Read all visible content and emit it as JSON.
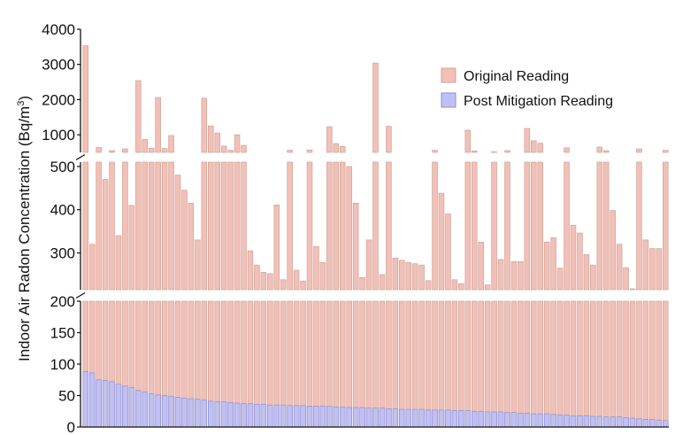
{
  "chart_data": {
    "type": "bar",
    "subtype": "overlapping bars with broken y-axis",
    "ylabel": "Indoor Air Radon Concentration (Bq/m³)",
    "ylabel_parts": {
      "main": "Indoor Air Radon Concentration (Bq/m",
      "sup": "3",
      "end": ")"
    },
    "legend_position": "top-right",
    "grid": false,
    "y_segments": [
      {
        "range": [
          0,
          200
        ],
        "ticks": [
          0,
          50,
          100,
          150,
          200
        ]
      },
      {
        "range": [
          215,
          510
        ],
        "ticks": [
          300,
          400,
          500
        ]
      },
      {
        "range": [
          500,
          4000
        ],
        "ticks": [
          1000,
          2000,
          3000,
          4000
        ]
      }
    ],
    "series": [
      {
        "name": "Original Reading",
        "color": "#f4bfb8",
        "edge": "#c9a593",
        "values": [
          3530,
          320,
          640,
          470,
          550,
          340,
          600,
          410,
          2540,
          870,
          620,
          2060,
          610,
          980,
          480,
          445,
          415,
          330,
          2040,
          1250,
          1050,
          680,
          560,
          1000,
          700,
          305,
          272,
          255,
          252,
          411,
          238,
          560,
          260,
          235,
          570,
          315,
          278,
          1230,
          750,
          670,
          500,
          415,
          243,
          330,
          3040,
          250,
          1240,
          288,
          283,
          278,
          275,
          272,
          236,
          560,
          438,
          390,
          238,
          229,
          1130,
          540,
          325,
          226,
          518,
          285,
          550,
          280,
          280,
          1180,
          830,
          760,
          325,
          335,
          265,
          630,
          364,
          346,
          296,
          272,
          650,
          550,
          398,
          320,
          266,
          217,
          600,
          330,
          310,
          310,
          560
        ]
      },
      {
        "name": "Post Mitigation Reading",
        "color": "#c0c0f6",
        "edge": "#8e8ec9",
        "values": [
          88,
          86,
          75,
          74,
          72,
          68,
          65,
          63,
          58,
          56,
          53,
          51,
          50,
          49,
          47,
          46,
          45,
          44,
          43,
          41,
          40,
          40,
          39,
          38,
          37,
          37,
          36,
          36,
          35,
          35,
          35,
          34,
          34,
          34,
          33,
          33,
          33,
          33,
          32,
          32,
          31,
          31,
          31,
          30,
          30,
          30,
          29,
          29,
          28,
          28,
          28,
          28,
          27,
          27,
          27,
          27,
          26,
          26,
          26,
          25,
          25,
          24,
          24,
          24,
          23,
          23,
          22,
          22,
          21,
          21,
          21,
          20,
          19,
          19,
          18,
          18,
          18,
          17,
          17,
          16,
          16,
          16,
          15,
          14,
          13,
          12,
          12,
          11,
          10
        ]
      }
    ]
  }
}
